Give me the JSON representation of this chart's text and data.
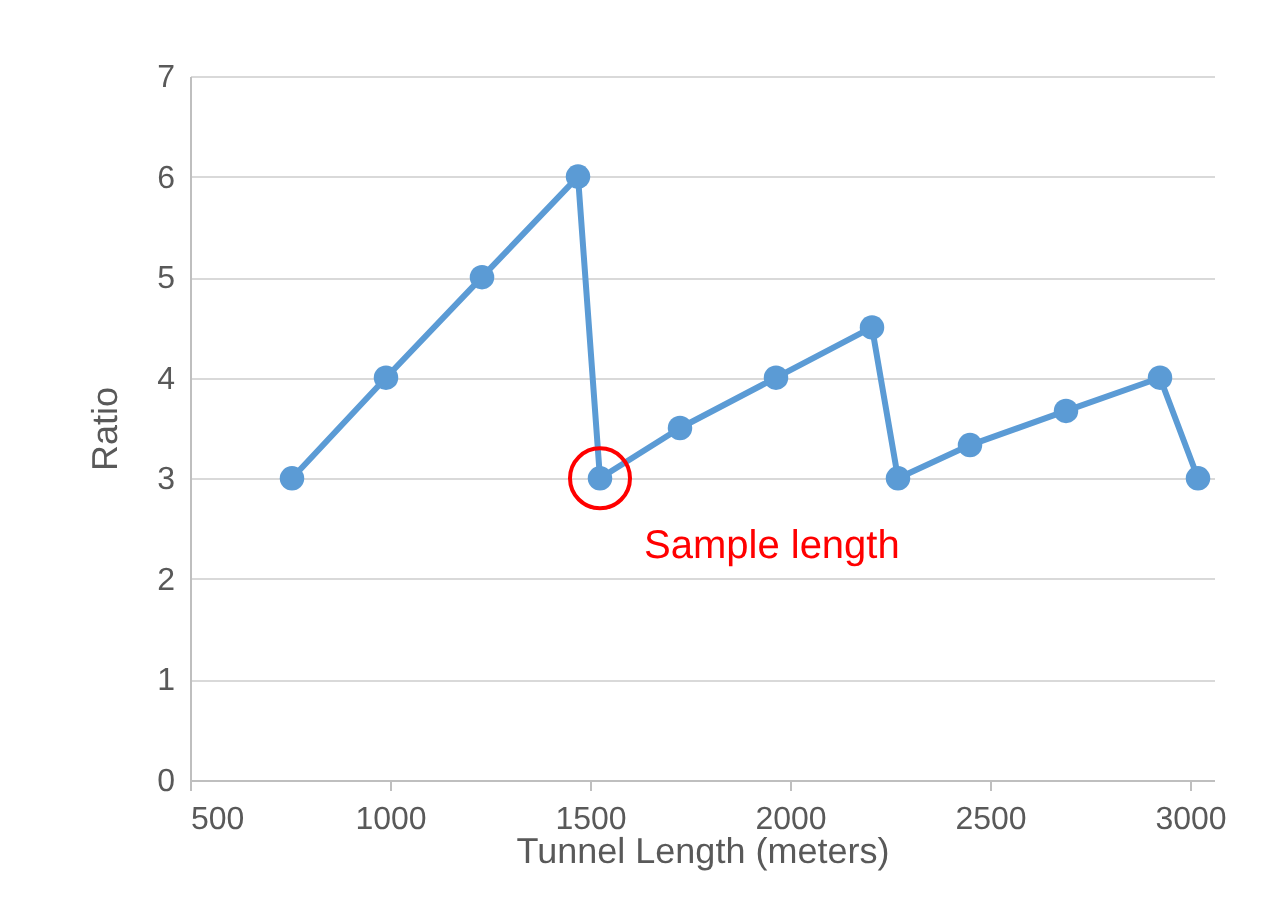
{
  "chart_data": {
    "type": "line",
    "xlabel": "Tunnel Length (meters)",
    "ylabel": "Ratio",
    "x": [
      755,
      990,
      1230,
      1470,
      1525,
      1725,
      1965,
      2205,
      2270,
      2450,
      2690,
      2925,
      3020
    ],
    "series": [
      {
        "color": "#5b9bd5",
        "values": [
          3,
          4,
          5,
          6,
          3,
          3.5,
          4,
          4.5,
          3,
          3.33,
          3.67,
          4,
          3
        ]
      }
    ],
    "xlim": [
      500,
      3060
    ],
    "xticks": [
      500,
      1000,
      1500,
      2000,
      2500,
      3000
    ],
    "ylim": [
      0,
      7
    ],
    "yticks": [
      0,
      1,
      2,
      3,
      4,
      5,
      6,
      7
    ],
    "grid": "y",
    "marker": "circle",
    "line_style": "solid",
    "annotations": [
      {
        "text": "Sample length",
        "x": 1525,
        "y": 3
      }
    ]
  }
}
